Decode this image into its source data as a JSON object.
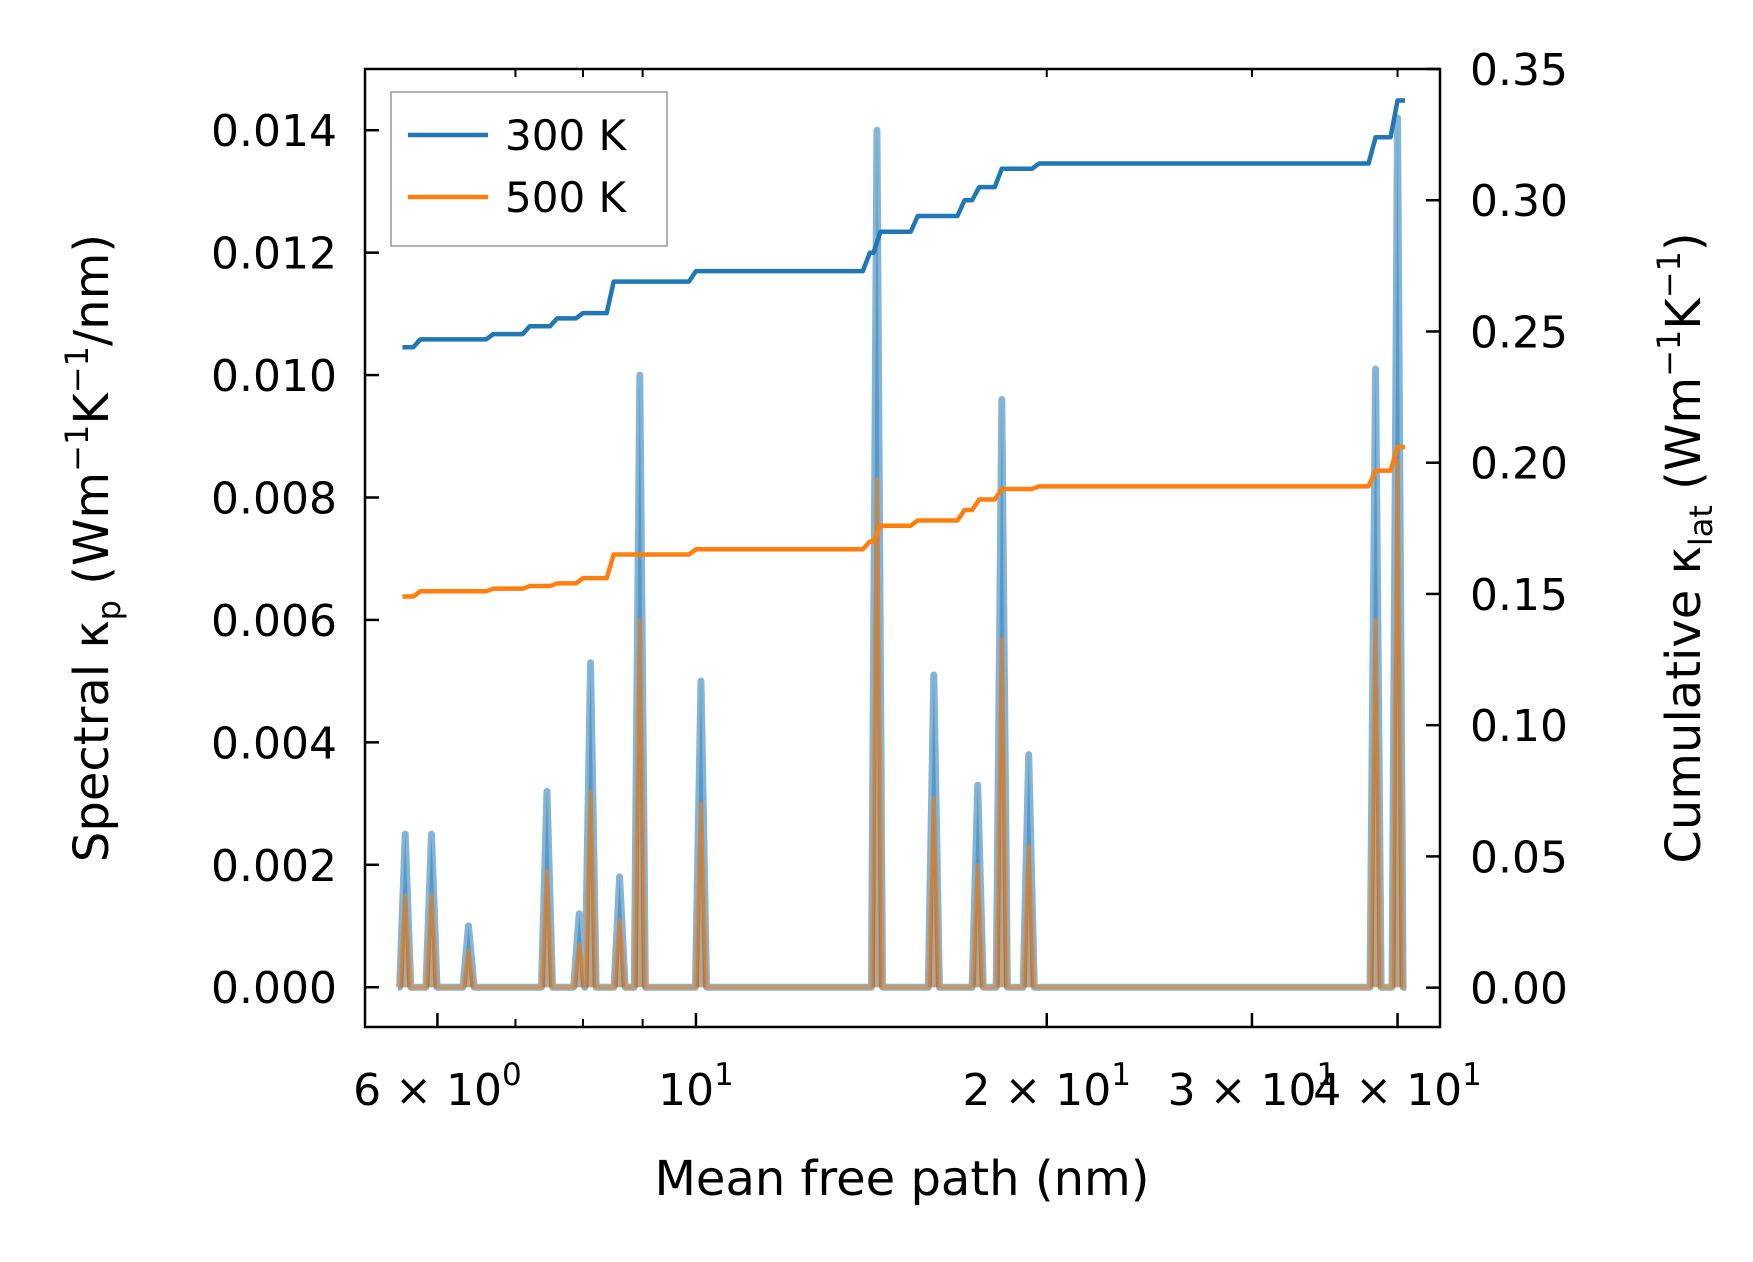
{
  "chart_data": {
    "type": "line",
    "x_scale": "log",
    "xlabel": "Mean free path (nm)",
    "ylabel_left_parts": [
      "Spectral κ",
      "p",
      " (Wm",
      "−1",
      "K",
      "−1",
      "/nm)"
    ],
    "ylabel_right_parts": [
      "Cumulative κ",
      "lat",
      " (Wm",
      "−1",
      "K",
      "−1",
      ")"
    ],
    "xlim": [
      5.2,
      43.5
    ],
    "ylim_left": [
      -0.00065,
      0.015
    ],
    "ylim_right": [
      -0.015,
      0.35
    ],
    "x_ticks": [
      {
        "value": 6,
        "mantissa": "6",
        "exp": "0",
        "sci": true
      },
      {
        "value": 10,
        "mantissa": "",
        "exp": "1",
        "sci": false
      },
      {
        "value": 20,
        "mantissa": "2",
        "exp": "1",
        "sci": true
      },
      {
        "value": 30,
        "mantissa": "3",
        "exp": "1",
        "sci": true
      },
      {
        "value": 40,
        "mantissa": "4",
        "exp": "1",
        "sci": true
      }
    ],
    "x_minor_ticks": [
      7,
      8,
      9,
      20,
      30,
      40
    ],
    "y_left_ticks": [
      {
        "value": 0.0,
        "label": "0.000"
      },
      {
        "value": 0.002,
        "label": "0.002"
      },
      {
        "value": 0.004,
        "label": "0.004"
      },
      {
        "value": 0.006,
        "label": "0.006"
      },
      {
        "value": 0.008,
        "label": "0.008"
      },
      {
        "value": 0.01,
        "label": "0.010"
      },
      {
        "value": 0.012,
        "label": "0.012"
      },
      {
        "value": 0.014,
        "label": "0.014"
      }
    ],
    "y_right_ticks": [
      {
        "value": 0.0,
        "label": "0.00"
      },
      {
        "value": 0.05,
        "label": "0.05"
      },
      {
        "value": 0.1,
        "label": "0.10"
      },
      {
        "value": 0.15,
        "label": "0.15"
      },
      {
        "value": 0.2,
        "label": "0.20"
      },
      {
        "value": 0.25,
        "label": "0.25"
      },
      {
        "value": 0.3,
        "label": "0.30"
      },
      {
        "value": 0.35,
        "label": "0.35"
      }
    ],
    "legend_position": "top-left",
    "series": [
      {
        "name": "300 K",
        "color": "#1f77b4",
        "cumulative": [
          [
            5.6,
            0.244
          ],
          [
            5.8,
            0.247
          ],
          [
            6.7,
            0.249
          ],
          [
            7.2,
            0.252
          ],
          [
            7.6,
            0.255
          ],
          [
            8.0,
            0.257
          ],
          [
            8.5,
            0.269
          ],
          [
            10.0,
            0.273
          ],
          [
            14.1,
            0.28
          ],
          [
            14.4,
            0.288
          ],
          [
            15.5,
            0.294
          ],
          [
            17.0,
            0.3
          ],
          [
            17.5,
            0.305
          ],
          [
            18.3,
            0.312
          ],
          [
            19.7,
            0.314
          ],
          [
            37.5,
            0.314
          ],
          [
            38.3,
            0.324
          ],
          [
            40.0,
            0.338
          ]
        ],
        "spectral_peaks": [
          [
            5.63,
            0.0025
          ],
          [
            5.93,
            0.0025
          ],
          [
            6.38,
            0.001
          ],
          [
            7.45,
            0.0032
          ],
          [
            7.94,
            0.0012
          ],
          [
            8.12,
            0.0053
          ],
          [
            8.6,
            0.0018
          ],
          [
            8.95,
            0.01
          ],
          [
            10.1,
            0.005
          ],
          [
            14.3,
            0.014
          ],
          [
            16.0,
            0.0051
          ],
          [
            17.45,
            0.0033
          ],
          [
            18.3,
            0.0096
          ],
          [
            19.3,
            0.0038
          ],
          [
            38.3,
            0.0101
          ],
          [
            40.0,
            0.0142
          ]
        ]
      },
      {
        "name": "500 K",
        "color": "#ff7f0e",
        "cumulative": [
          [
            5.6,
            0.149
          ],
          [
            5.8,
            0.151
          ],
          [
            6.7,
            0.152
          ],
          [
            7.2,
            0.153
          ],
          [
            7.6,
            0.154
          ],
          [
            8.0,
            0.156
          ],
          [
            8.5,
            0.165
          ],
          [
            10.0,
            0.167
          ],
          [
            14.1,
            0.17
          ],
          [
            14.4,
            0.176
          ],
          [
            15.5,
            0.178
          ],
          [
            17.0,
            0.182
          ],
          [
            17.5,
            0.186
          ],
          [
            18.3,
            0.19
          ],
          [
            19.7,
            0.191
          ],
          [
            37.5,
            0.191
          ],
          [
            38.3,
            0.197
          ],
          [
            40.0,
            0.206
          ]
        ],
        "spectral_peaks": [
          [
            5.63,
            0.0015
          ],
          [
            5.93,
            0.0015
          ],
          [
            6.38,
            0.0006
          ],
          [
            7.45,
            0.0019
          ],
          [
            7.94,
            0.0007
          ],
          [
            8.12,
            0.0032
          ],
          [
            8.6,
            0.0011
          ],
          [
            8.95,
            0.006
          ],
          [
            10.1,
            0.003
          ],
          [
            14.3,
            0.0083
          ],
          [
            16.0,
            0.0031
          ],
          [
            17.45,
            0.002
          ],
          [
            18.3,
            0.0057
          ],
          [
            19.3,
            0.0023
          ],
          [
            38.3,
            0.006
          ],
          [
            40.0,
            0.0086
          ]
        ]
      }
    ]
  }
}
